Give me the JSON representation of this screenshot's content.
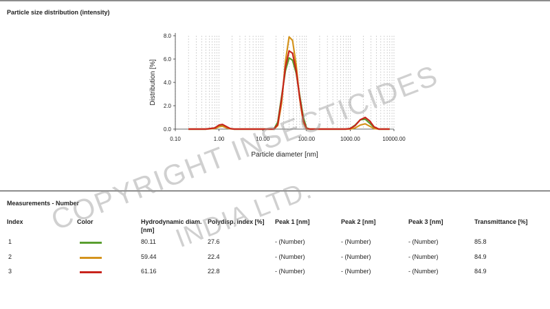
{
  "chart_section": {
    "title": "Particle size distribution (intensity)"
  },
  "chart_data": {
    "type": "line",
    "xscale": "log",
    "xlim": [
      0.1,
      10000
    ],
    "ylim": [
      0,
      8
    ],
    "xticks": [
      "0.10",
      "1.00",
      "10.00",
      "100.00",
      "1000.00",
      "10000.00"
    ],
    "yticks": [
      "0.0",
      "2.0",
      "4.0",
      "6.0",
      "8.0"
    ],
    "xlabel": "Particle diameter [nm]",
    "ylabel": "Distribution [%]",
    "grid": "vertical minor log lines",
    "series": [
      {
        "color": "#5a9e2f",
        "x": [
          0.2,
          0.5,
          0.8,
          1.0,
          1.2,
          1.5,
          1.8,
          2.2,
          3,
          5,
          10,
          18,
          22,
          27,
          33,
          40,
          48,
          58,
          70,
          85,
          100,
          120,
          150,
          200,
          400,
          600,
          800,
          1000,
          1300,
          1700,
          2200,
          2800,
          3500,
          4500,
          6000,
          8000
        ],
        "y": [
          0,
          0,
          0.1,
          0.3,
          0.3,
          0.15,
          0.05,
          0,
          0,
          0,
          0,
          0,
          0.6,
          2.8,
          5.0,
          6.1,
          5.9,
          4.8,
          2.9,
          1.0,
          0.1,
          0,
          0,
          0,
          0,
          0,
          0,
          0.05,
          0.35,
          0.8,
          0.85,
          0.5,
          0.15,
          0,
          0,
          0
        ]
      },
      {
        "color": "#d4931c",
        "x": [
          0.2,
          0.5,
          0.8,
          1.0,
          1.2,
          1.5,
          1.8,
          2.2,
          3,
          5,
          10,
          18,
          22,
          27,
          33,
          40,
          48,
          58,
          70,
          85,
          100,
          120,
          150,
          200,
          400,
          600,
          800,
          1000,
          1300,
          1700,
          2200,
          2800,
          3500,
          4500,
          6000,
          8000
        ],
        "y": [
          0,
          0,
          0.05,
          0.2,
          0.25,
          0.1,
          0.03,
          0,
          0,
          0,
          0,
          0,
          0.3,
          2.2,
          5.8,
          7.9,
          7.6,
          5.5,
          2.6,
          0.5,
          0,
          0,
          0,
          0,
          0,
          0,
          0,
          0,
          0.1,
          0.35,
          0.45,
          0.25,
          0.05,
          0,
          0,
          0
        ]
      },
      {
        "color": "#c8241c",
        "x": [
          0.2,
          0.5,
          0.8,
          1.0,
          1.2,
          1.5,
          1.8,
          2.2,
          3,
          5,
          10,
          18,
          22,
          27,
          33,
          40,
          48,
          58,
          70,
          85,
          100,
          120,
          150,
          200,
          400,
          600,
          800,
          1000,
          1300,
          1700,
          2200,
          2800,
          3500,
          4500,
          6000,
          8000
        ],
        "y": [
          0,
          0,
          0.1,
          0.35,
          0.4,
          0.2,
          0.05,
          0,
          0,
          0,
          0,
          0,
          0.4,
          2.6,
          5.3,
          6.7,
          6.5,
          5.0,
          2.7,
          0.7,
          0.05,
          0,
          0,
          0,
          0,
          0,
          0,
          0.05,
          0.3,
          0.8,
          1.0,
          0.7,
          0.2,
          0,
          0,
          0
        ]
      }
    ]
  },
  "measurements": {
    "title": "Measurements - Number",
    "headers": {
      "index": "Index",
      "color": "Color",
      "hydro": "Hydrodynamic diam.",
      "hydro_unit": "[nm]",
      "pdi": "Polydisp. index [%]",
      "peak1": "Peak 1 [nm]",
      "peak2": "Peak 2 [nm]",
      "peak3": "Peak 3 [nm]",
      "trans": "Transmittance [%]"
    },
    "rows": [
      {
        "index": "1",
        "color": "#5a9e2f",
        "hydro": "80.11",
        "pdi": "27.6",
        "peak1": "- (Number)",
        "peak2": "- (Number)",
        "peak3": "- (Number)",
        "trans": "85.8"
      },
      {
        "index": "2",
        "color": "#d4931c",
        "hydro": "59.44",
        "pdi": "22.4",
        "peak1": "- (Number)",
        "peak2": "- (Number)",
        "peak3": "- (Number)",
        "trans": "84.9"
      },
      {
        "index": "3",
        "color": "#c8241c",
        "hydro": "61.16",
        "pdi": "22.8",
        "peak1": "- (Number)",
        "peak2": "- (Number)",
        "peak3": "- (Number)",
        "trans": "84.9"
      }
    ]
  },
  "watermark": {
    "line1": "COPYRIGHT INSECTICIDES",
    "line2": "INDIA LTD."
  }
}
